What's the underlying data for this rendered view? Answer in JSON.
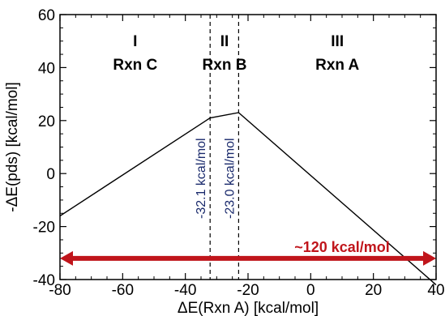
{
  "chart_data": {
    "type": "line",
    "xlabel": "ΔE(Rxn A) [kcal/mol]",
    "ylabel": "-ΔE(pds) [kcal/mol]",
    "xlim": [
      -80,
      40
    ],
    "ylim": [
      -40,
      60
    ],
    "xticks": [
      -80,
      -60,
      -40,
      -20,
      0,
      20,
      40
    ],
    "yticks": [
      -40,
      -20,
      0,
      20,
      40,
      60
    ],
    "x_minor_step": 5,
    "y_minor_step": 5,
    "series": [
      {
        "x": [
          -80,
          -32.1,
          -23.0,
          40
        ],
        "y": [
          -16,
          21,
          23,
          -42
        ],
        "color": "#000000"
      }
    ],
    "vlines": [
      {
        "x": -32.1,
        "label": "-32.1 kcal/mol"
      },
      {
        "x": -23.0,
        "label": "-23.0 kcal/mol"
      }
    ],
    "regions": [
      {
        "roman": "I",
        "name": "Rxn C",
        "x": -56
      },
      {
        "roman": "II",
        "name": "Rxn B",
        "x": -27.5
      },
      {
        "roman": "III",
        "name": "Rxn A",
        "x": 8.5
      }
    ],
    "arrow": {
      "y": -32,
      "x_from": -80,
      "x_to": 40,
      "label": "~120 kcal/mol",
      "label_x": 10,
      "color": "#c0151b"
    },
    "grid": false
  }
}
